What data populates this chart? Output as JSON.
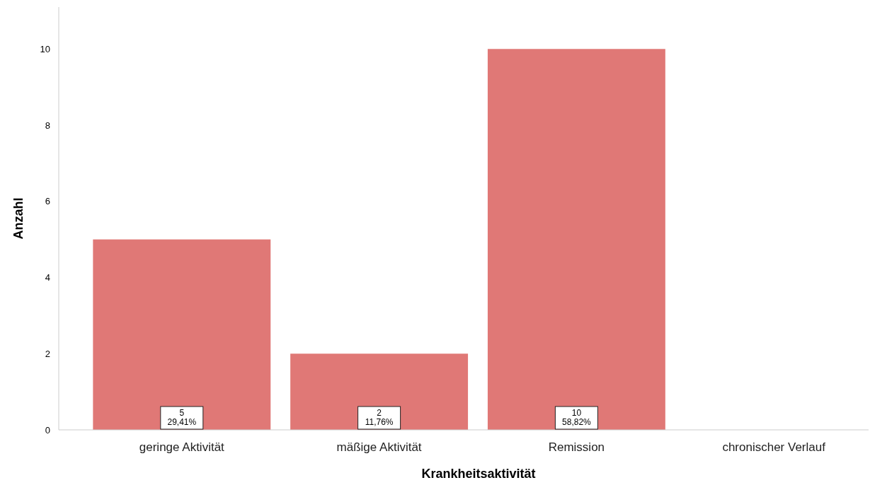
{
  "chart_data": {
    "type": "bar",
    "xlabel": "Krankheitsaktivität",
    "ylabel": "Anzahl",
    "categories": [
      "geringe Aktivität",
      "mäßige Aktivität",
      "Remission",
      "chronischer Verlauf"
    ],
    "values": [
      5,
      2,
      10,
      null
    ],
    "value_labels": [
      "5\n29,41%",
      "2\n11,76%",
      "10\n58,82%",
      null
    ],
    "color": "#e07876",
    "ylim": [
      0,
      11.1
    ],
    "yticks": [
      0,
      2,
      4,
      6,
      8,
      10
    ],
    "grid": false
  }
}
